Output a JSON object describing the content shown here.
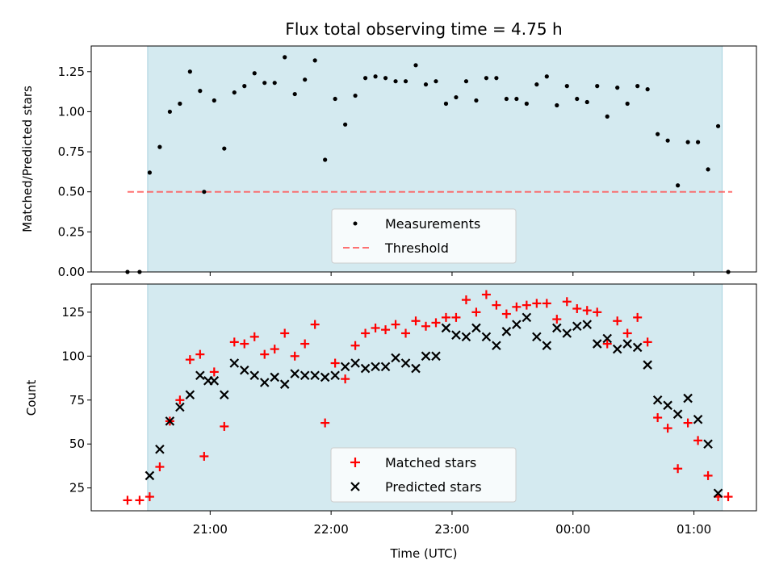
{
  "chart_data": [
    {
      "type": "scatter",
      "title": "Flux total observing time = 4.75 h",
      "xlabel": "",
      "ylabel": "Matched/Predicted stars",
      "ylim": [
        0,
        1.41
      ],
      "yticks": [
        "0.00",
        "0.25",
        "0.50",
        "0.75",
        "1.00",
        "1.25"
      ],
      "xtick_labels": [],
      "shaded_interval_x": [
        "20:29",
        "01:14"
      ],
      "threshold": {
        "name": "Threshold",
        "value": 0.5,
        "x_range": [
          "20:19",
          "01:19"
        ],
        "color": "#ff5a5a"
      },
      "legend": {
        "position": "bottom-center",
        "entries": [
          "Measurements",
          "Threshold"
        ]
      },
      "series": [
        {
          "name": "Measurements",
          "color": "#000000",
          "points": [
            {
              "x": "20:19",
              "y": 0.0
            },
            {
              "x": "20:25",
              "y": 0.0
            },
            {
              "x": "20:30",
              "y": 0.62
            },
            {
              "x": "20:35",
              "y": 0.78
            },
            {
              "x": "20:40",
              "y": 1.0
            },
            {
              "x": "20:45",
              "y": 1.05
            },
            {
              "x": "20:50",
              "y": 1.25
            },
            {
              "x": "20:55",
              "y": 1.13
            },
            {
              "x": "20:57",
              "y": 0.5
            },
            {
              "x": "21:02",
              "y": 1.07
            },
            {
              "x": "21:07",
              "y": 0.77
            },
            {
              "x": "21:12",
              "y": 1.12
            },
            {
              "x": "21:17",
              "y": 1.16
            },
            {
              "x": "21:22",
              "y": 1.24
            },
            {
              "x": "21:27",
              "y": 1.18
            },
            {
              "x": "21:32",
              "y": 1.18
            },
            {
              "x": "21:37",
              "y": 1.34
            },
            {
              "x": "21:42",
              "y": 1.11
            },
            {
              "x": "21:47",
              "y": 1.2
            },
            {
              "x": "21:52",
              "y": 1.32
            },
            {
              "x": "21:57",
              "y": 0.7
            },
            {
              "x": "22:02",
              "y": 1.08
            },
            {
              "x": "22:07",
              "y": 0.92
            },
            {
              "x": "22:12",
              "y": 1.1
            },
            {
              "x": "22:17",
              "y": 1.21
            },
            {
              "x": "22:22",
              "y": 1.22
            },
            {
              "x": "22:27",
              "y": 1.21
            },
            {
              "x": "22:32",
              "y": 1.19
            },
            {
              "x": "22:37",
              "y": 1.19
            },
            {
              "x": "22:42",
              "y": 1.29
            },
            {
              "x": "22:47",
              "y": 1.17
            },
            {
              "x": "22:52",
              "y": 1.19
            },
            {
              "x": "22:57",
              "y": 1.05
            },
            {
              "x": "23:02",
              "y": 1.09
            },
            {
              "x": "23:07",
              "y": 1.19
            },
            {
              "x": "23:12",
              "y": 1.07
            },
            {
              "x": "23:17",
              "y": 1.21
            },
            {
              "x": "23:22",
              "y": 1.21
            },
            {
              "x": "23:27",
              "y": 1.08
            },
            {
              "x": "23:32",
              "y": 1.08
            },
            {
              "x": "23:37",
              "y": 1.05
            },
            {
              "x": "23:42",
              "y": 1.17
            },
            {
              "x": "23:47",
              "y": 1.22
            },
            {
              "x": "23:52",
              "y": 1.04
            },
            {
              "x": "23:57",
              "y": 1.16
            },
            {
              "x": "00:02",
              "y": 1.08
            },
            {
              "x": "00:07",
              "y": 1.06
            },
            {
              "x": "00:12",
              "y": 1.16
            },
            {
              "x": "00:17",
              "y": 0.97
            },
            {
              "x": "00:22",
              "y": 1.15
            },
            {
              "x": "00:27",
              "y": 1.05
            },
            {
              "x": "00:32",
              "y": 1.16
            },
            {
              "x": "00:37",
              "y": 1.14
            },
            {
              "x": "00:42",
              "y": 0.86
            },
            {
              "x": "00:47",
              "y": 0.82
            },
            {
              "x": "00:52",
              "y": 0.54
            },
            {
              "x": "00:57",
              "y": 0.81
            },
            {
              "x": "01:02",
              "y": 0.81
            },
            {
              "x": "01:07",
              "y": 0.64
            },
            {
              "x": "01:12",
              "y": 0.91
            },
            {
              "x": "01:17",
              "y": 0.0
            }
          ]
        }
      ]
    },
    {
      "type": "scatter",
      "title": "",
      "xlabel": "Time (UTC)",
      "ylabel": "Count",
      "ylim": [
        12,
        141
      ],
      "yticks": [
        "25",
        "50",
        "75",
        "100",
        "125"
      ],
      "xlim": [
        "20:01",
        "01:31"
      ],
      "xtick_labels": [
        "21:00",
        "22:00",
        "23:00",
        "00:00",
        "01:00"
      ],
      "shaded_interval_x": [
        "20:29",
        "01:14"
      ],
      "legend": {
        "position": "bottom-center",
        "entries": [
          "Matched stars",
          "Predicted stars"
        ]
      },
      "series": [
        {
          "name": "Matched stars",
          "marker": "+",
          "color": "#ff0000",
          "points": [
            {
              "x": "20:19",
              "y": 18
            },
            {
              "x": "20:25",
              "y": 18
            },
            {
              "x": "20:30",
              "y": 20
            },
            {
              "x": "20:35",
              "y": 37
            },
            {
              "x": "20:40",
              "y": 63
            },
            {
              "x": "20:45",
              "y": 75
            },
            {
              "x": "20:50",
              "y": 98
            },
            {
              "x": "20:55",
              "y": 101
            },
            {
              "x": "20:57",
              "y": 43
            },
            {
              "x": "21:02",
              "y": 91
            },
            {
              "x": "21:07",
              "y": 60
            },
            {
              "x": "21:12",
              "y": 108
            },
            {
              "x": "21:17",
              "y": 107
            },
            {
              "x": "21:22",
              "y": 111
            },
            {
              "x": "21:27",
              "y": 101
            },
            {
              "x": "21:32",
              "y": 104
            },
            {
              "x": "21:37",
              "y": 113
            },
            {
              "x": "21:42",
              "y": 100
            },
            {
              "x": "21:47",
              "y": 107
            },
            {
              "x": "21:52",
              "y": 118
            },
            {
              "x": "21:57",
              "y": 62
            },
            {
              "x": "22:02",
              "y": 96
            },
            {
              "x": "22:07",
              "y": 87
            },
            {
              "x": "22:12",
              "y": 106
            },
            {
              "x": "22:17",
              "y": 113
            },
            {
              "x": "22:22",
              "y": 116
            },
            {
              "x": "22:27",
              "y": 115
            },
            {
              "x": "22:32",
              "y": 118
            },
            {
              "x": "22:37",
              "y": 113
            },
            {
              "x": "22:42",
              "y": 120
            },
            {
              "x": "22:47",
              "y": 117
            },
            {
              "x": "22:52",
              "y": 119
            },
            {
              "x": "22:57",
              "y": 122
            },
            {
              "x": "23:02",
              "y": 122
            },
            {
              "x": "23:07",
              "y": 132
            },
            {
              "x": "23:12",
              "y": 125
            },
            {
              "x": "23:17",
              "y": 135
            },
            {
              "x": "23:22",
              "y": 129
            },
            {
              "x": "23:27",
              "y": 124
            },
            {
              "x": "23:32",
              "y": 128
            },
            {
              "x": "23:37",
              "y": 129
            },
            {
              "x": "23:42",
              "y": 130
            },
            {
              "x": "23:47",
              "y": 130
            },
            {
              "x": "23:52",
              "y": 121
            },
            {
              "x": "23:57",
              "y": 131
            },
            {
              "x": "00:02",
              "y": 127
            },
            {
              "x": "00:07",
              "y": 126
            },
            {
              "x": "00:12",
              "y": 125
            },
            {
              "x": "00:17",
              "y": 107
            },
            {
              "x": "00:22",
              "y": 120
            },
            {
              "x": "00:27",
              "y": 113
            },
            {
              "x": "00:32",
              "y": 122
            },
            {
              "x": "00:37",
              "y": 108
            },
            {
              "x": "00:42",
              "y": 65
            },
            {
              "x": "00:47",
              "y": 59
            },
            {
              "x": "00:52",
              "y": 36
            },
            {
              "x": "00:57",
              "y": 62
            },
            {
              "x": "01:02",
              "y": 52
            },
            {
              "x": "01:07",
              "y": 32
            },
            {
              "x": "01:12",
              "y": 20
            },
            {
              "x": "01:17",
              "y": 20
            }
          ]
        },
        {
          "name": "Predicted stars",
          "marker": "x",
          "color": "#000000",
          "points": [
            {
              "x": "20:30",
              "y": 32
            },
            {
              "x": "20:35",
              "y": 47
            },
            {
              "x": "20:40",
              "y": 63
            },
            {
              "x": "20:45",
              "y": 71
            },
            {
              "x": "20:50",
              "y": 78
            },
            {
              "x": "20:55",
              "y": 89
            },
            {
              "x": "20:59",
              "y": 86
            },
            {
              "x": "21:02",
              "y": 86
            },
            {
              "x": "21:07",
              "y": 78
            },
            {
              "x": "21:12",
              "y": 96
            },
            {
              "x": "21:17",
              "y": 92
            },
            {
              "x": "21:22",
              "y": 89
            },
            {
              "x": "21:27",
              "y": 85
            },
            {
              "x": "21:32",
              "y": 88
            },
            {
              "x": "21:37",
              "y": 84
            },
            {
              "x": "21:42",
              "y": 90
            },
            {
              "x": "21:47",
              "y": 89
            },
            {
              "x": "21:52",
              "y": 89
            },
            {
              "x": "21:57",
              "y": 88
            },
            {
              "x": "22:02",
              "y": 89
            },
            {
              "x": "22:07",
              "y": 94
            },
            {
              "x": "22:12",
              "y": 96
            },
            {
              "x": "22:17",
              "y": 93
            },
            {
              "x": "22:22",
              "y": 94
            },
            {
              "x": "22:27",
              "y": 94
            },
            {
              "x": "22:32",
              "y": 99
            },
            {
              "x": "22:37",
              "y": 96
            },
            {
              "x": "22:42",
              "y": 93
            },
            {
              "x": "22:47",
              "y": 100
            },
            {
              "x": "22:52",
              "y": 100
            },
            {
              "x": "22:57",
              "y": 116
            },
            {
              "x": "23:02",
              "y": 112
            },
            {
              "x": "23:07",
              "y": 111
            },
            {
              "x": "23:12",
              "y": 116
            },
            {
              "x": "23:17",
              "y": 111
            },
            {
              "x": "23:22",
              "y": 106
            },
            {
              "x": "23:27",
              "y": 114
            },
            {
              "x": "23:32",
              "y": 118
            },
            {
              "x": "23:37",
              "y": 122
            },
            {
              "x": "23:42",
              "y": 111
            },
            {
              "x": "23:47",
              "y": 106
            },
            {
              "x": "23:52",
              "y": 116
            },
            {
              "x": "23:57",
              "y": 113
            },
            {
              "x": "00:02",
              "y": 117
            },
            {
              "x": "00:07",
              "y": 118
            },
            {
              "x": "00:12",
              "y": 107
            },
            {
              "x": "00:17",
              "y": 110
            },
            {
              "x": "00:22",
              "y": 104
            },
            {
              "x": "00:27",
              "y": 107
            },
            {
              "x": "00:32",
              "y": 105
            },
            {
              "x": "00:37",
              "y": 95
            },
            {
              "x": "00:42",
              "y": 75
            },
            {
              "x": "00:47",
              "y": 72
            },
            {
              "x": "00:52",
              "y": 67
            },
            {
              "x": "00:57",
              "y": 76
            },
            {
              "x": "01:02",
              "y": 64
            },
            {
              "x": "01:07",
              "y": 50
            },
            {
              "x": "01:12",
              "y": 22
            }
          ]
        }
      ]
    }
  ],
  "colors": {
    "shade": "#d4eaf0",
    "shade_edge": "#a8d2df"
  }
}
